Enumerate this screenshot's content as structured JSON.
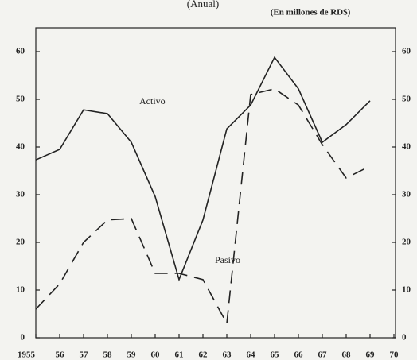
{
  "chart_data": {
    "type": "line",
    "subtitle": "(Anual)",
    "units": "(En millones de RD$)",
    "x": [
      1955,
      1956,
      1957,
      1958,
      1959,
      1960,
      1961,
      1962,
      1963,
      1964,
      1965,
      1966,
      1967,
      1968,
      1969
    ],
    "series": [
      {
        "name": "Activo",
        "color": "#222222",
        "dash": "none",
        "values": [
          37.3,
          39.5,
          47.8,
          47,
          41,
          29.6,
          12.2,
          24.7,
          43.8,
          48.8,
          58.8,
          52.2,
          41,
          44.7,
          49.7
        ]
      },
      {
        "name": "Pasivo",
        "color": "#222222",
        "dash": "16 9",
        "values": [
          6,
          11.3,
          20,
          24.7,
          25,
          13.5,
          13.5,
          12.2,
          3,
          51,
          52.2,
          48.8,
          40.5,
          33.5,
          36
        ]
      }
    ],
    "xlim": [
      1955,
      1970
    ],
    "xticks": [
      1955,
      {
        "value": 1956,
        "label": "56"
      },
      {
        "value": 1957,
        "label": "57"
      },
      {
        "value": 1958,
        "label": "58"
      },
      {
        "value": 1959,
        "label": "59"
      },
      {
        "value": 1960,
        "label": "60"
      },
      {
        "value": 1961,
        "label": "61"
      },
      {
        "value": 1962,
        "label": "62"
      },
      {
        "value": 1963,
        "label": "63"
      },
      {
        "value": 1964,
        "label": "64"
      },
      {
        "value": 1965,
        "label": "65"
      },
      {
        "value": 1966,
        "label": "66"
      },
      {
        "value": 1967,
        "label": "67"
      },
      {
        "value": 1968,
        "label": "68"
      },
      {
        "value": 1969,
        "label": "69"
      },
      {
        "value": 1970,
        "label": "70"
      }
    ],
    "ylim": [
      0,
      65
    ],
    "yticks": [
      0,
      10,
      20,
      30,
      40,
      50,
      60
    ]
  }
}
